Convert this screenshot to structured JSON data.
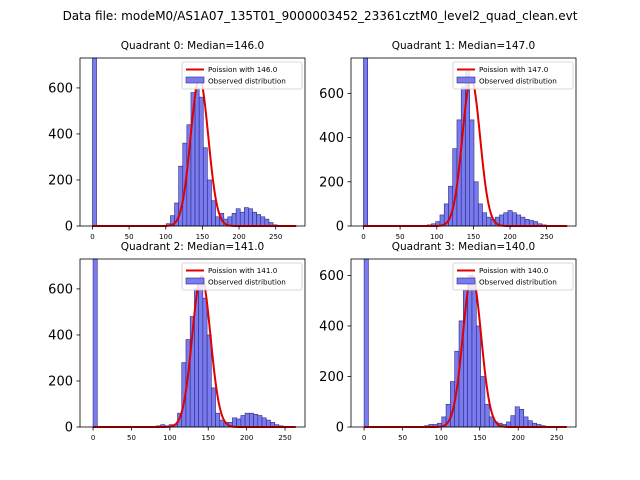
{
  "figure": {
    "suptitle": "Data file: modeM0/AS1A07_135T01_9000003452_23361cztM0_level2_quad_clean.evt"
  },
  "chart_data": [
    {
      "type": "bar",
      "title": "Quadrant 0: Median=146.0",
      "legend": {
        "placement": "top-right",
        "line_label": "Poission with 146.0",
        "bar_label": "Observed distribution"
      },
      "xlim": [
        -17,
        290
      ],
      "ylim": [
        0,
        730
      ],
      "xticks": [
        0,
        50,
        100,
        150,
        200,
        250
      ],
      "yticks": [
        0,
        200,
        400,
        600
      ],
      "bin_width": 5.6,
      "bins": [
        [
          0,
          730
        ],
        [
          5.6,
          0
        ],
        [
          11.2,
          0
        ],
        [
          16.8,
          0
        ],
        [
          22.4,
          0
        ],
        [
          28,
          0
        ],
        [
          33.6,
          0
        ],
        [
          39.2,
          0
        ],
        [
          44.8,
          0
        ],
        [
          50.4,
          0
        ],
        [
          56,
          0
        ],
        [
          61.6,
          0
        ],
        [
          67.2,
          0
        ],
        [
          72.8,
          0
        ],
        [
          78.4,
          0
        ],
        [
          84,
          0
        ],
        [
          89.6,
          0
        ],
        [
          95.2,
          0
        ],
        [
          100.8,
          10
        ],
        [
          106.4,
          45
        ],
        [
          112,
          100
        ],
        [
          117.6,
          260
        ],
        [
          123.2,
          360
        ],
        [
          128.8,
          440
        ],
        [
          134.4,
          580
        ],
        [
          140,
          600
        ],
        [
          145.6,
          560
        ],
        [
          151.2,
          340
        ],
        [
          156.8,
          200
        ],
        [
          162.4,
          110
        ],
        [
          168,
          40
        ],
        [
          173.6,
          55
        ],
        [
          179.2,
          30
        ],
        [
          184.8,
          40
        ],
        [
          190.4,
          55
        ],
        [
          196,
          75
        ],
        [
          201.6,
          60
        ],
        [
          207.2,
          80
        ],
        [
          212.8,
          75
        ],
        [
          218.4,
          60
        ],
        [
          224,
          50
        ],
        [
          229.6,
          40
        ],
        [
          235.2,
          30
        ],
        [
          240.8,
          15
        ],
        [
          246.4,
          5
        ]
      ],
      "curve_mean": 146.0,
      "curve_peak": 640
    },
    {
      "type": "bar",
      "title": "Quadrant 1: Median=147.0",
      "legend": {
        "placement": "top-right",
        "line_label": "Poission with 147.0",
        "bar_label": "Observed distribution"
      },
      "xlim": [
        -17,
        290
      ],
      "ylim": [
        0,
        760
      ],
      "xticks": [
        0,
        50,
        100,
        150,
        200,
        250
      ],
      "yticks": [
        0,
        200,
        400,
        600
      ],
      "bin_width": 5.8,
      "bins": [
        [
          0,
          760
        ],
        [
          5.8,
          0
        ],
        [
          11.6,
          0
        ],
        [
          17.4,
          0
        ],
        [
          23.2,
          0
        ],
        [
          29,
          0
        ],
        [
          34.8,
          0
        ],
        [
          40.6,
          0
        ],
        [
          46.4,
          0
        ],
        [
          52.2,
          0
        ],
        [
          58,
          0
        ],
        [
          63.8,
          0
        ],
        [
          69.6,
          0
        ],
        [
          75.4,
          0
        ],
        [
          81.2,
          0
        ],
        [
          87,
          5
        ],
        [
          92.8,
          10
        ],
        [
          98.6,
          20
        ],
        [
          104.4,
          50
        ],
        [
          110.2,
          100
        ],
        [
          116,
          180
        ],
        [
          121.8,
          350
        ],
        [
          127.6,
          480
        ],
        [
          133.4,
          630
        ],
        [
          139.2,
          700
        ],
        [
          145,
          480
        ],
        [
          150.8,
          200
        ],
        [
          156.6,
          100
        ],
        [
          162.4,
          60
        ],
        [
          168.2,
          40
        ],
        [
          174,
          30
        ],
        [
          179.8,
          40
        ],
        [
          185.6,
          50
        ],
        [
          191.4,
          60
        ],
        [
          197.2,
          70
        ],
        [
          203,
          60
        ],
        [
          208.8,
          50
        ],
        [
          214.6,
          40
        ],
        [
          220.4,
          30
        ],
        [
          226.2,
          25
        ],
        [
          232,
          20
        ],
        [
          237.8,
          10
        ],
        [
          243.6,
          5
        ]
      ],
      "curve_mean": 147.0,
      "curve_peak": 665
    },
    {
      "type": "bar",
      "title": "Quadrant 2: Median=141.0",
      "legend": {
        "placement": "top-right",
        "line_label": "Poission with 141.0",
        "bar_label": "Observed distribution"
      },
      "xlim": [
        -17,
        276
      ],
      "ylim": [
        0,
        730
      ],
      "xticks": [
        0,
        50,
        100,
        150,
        200,
        250
      ],
      "yticks": [
        0,
        200,
        400,
        600
      ],
      "bin_width": 5.5,
      "bins": [
        [
          0,
          730
        ],
        [
          5.5,
          0
        ],
        [
          11,
          0
        ],
        [
          16.5,
          0
        ],
        [
          22,
          0
        ],
        [
          27.5,
          0
        ],
        [
          33,
          0
        ],
        [
          38.5,
          0
        ],
        [
          44,
          0
        ],
        [
          49.5,
          0
        ],
        [
          55,
          0
        ],
        [
          60.5,
          0
        ],
        [
          66,
          0
        ],
        [
          71.5,
          0
        ],
        [
          77,
          0
        ],
        [
          82.5,
          5
        ],
        [
          88,
          10
        ],
        [
          93.5,
          5
        ],
        [
          99,
          10
        ],
        [
          104.5,
          10
        ],
        [
          110,
          60
        ],
        [
          115.5,
          280
        ],
        [
          121,
          380
        ],
        [
          126.5,
          480
        ],
        [
          132,
          600
        ],
        [
          137.5,
          640
        ],
        [
          143,
          560
        ],
        [
          148.5,
          400
        ],
        [
          154,
          170
        ],
        [
          159.5,
          60
        ],
        [
          165,
          30
        ],
        [
          170.5,
          20
        ],
        [
          176,
          20
        ],
        [
          181.5,
          40
        ],
        [
          187,
          35
        ],
        [
          192.5,
          50
        ],
        [
          198,
          60
        ],
        [
          203.5,
          60
        ],
        [
          209,
          55
        ],
        [
          214.5,
          50
        ],
        [
          220,
          40
        ],
        [
          225.5,
          30
        ],
        [
          231,
          20
        ],
        [
          236.5,
          10
        ],
        [
          242,
          5
        ]
      ],
      "curve_mean": 141.0,
      "curve_peak": 655
    },
    {
      "type": "bar",
      "title": "Quadrant 3: Median=140.0",
      "legend": {
        "placement": "top-right",
        "line_label": "Poission with 140.0",
        "bar_label": "Observed distribution"
      },
      "xlim": [
        -17,
        275
      ],
      "ylim": [
        0,
        665
      ],
      "xticks": [
        0,
        50,
        100,
        150,
        200,
        250
      ],
      "yticks": [
        0,
        200,
        400,
        600
      ],
      "bin_width": 5.6,
      "bins": [
        [
          0,
          665
        ],
        [
          5.6,
          0
        ],
        [
          11.2,
          0
        ],
        [
          16.8,
          0
        ],
        [
          22.4,
          0
        ],
        [
          28,
          0
        ],
        [
          33.6,
          0
        ],
        [
          39.2,
          0
        ],
        [
          44.8,
          0
        ],
        [
          50.4,
          0
        ],
        [
          56,
          0
        ],
        [
          61.6,
          0
        ],
        [
          67.2,
          0
        ],
        [
          72.8,
          0
        ],
        [
          78.4,
          5
        ],
        [
          84,
          10
        ],
        [
          89.6,
          10
        ],
        [
          95.2,
          15
        ],
        [
          100.8,
          40
        ],
        [
          106.4,
          90
        ],
        [
          112,
          180
        ],
        [
          117.6,
          300
        ],
        [
          123.2,
          420
        ],
        [
          128.8,
          540
        ],
        [
          134.4,
          600
        ],
        [
          140,
          580
        ],
        [
          145.6,
          400
        ],
        [
          151.2,
          200
        ],
        [
          156.8,
          90
        ],
        [
          162.4,
          40
        ],
        [
          168,
          20
        ],
        [
          173.6,
          15
        ],
        [
          179.2,
          10
        ],
        [
          184.8,
          20
        ],
        [
          190.4,
          45
        ],
        [
          196,
          80
        ],
        [
          201.6,
          70
        ],
        [
          207.2,
          40
        ],
        [
          212.8,
          25
        ],
        [
          218.4,
          15
        ],
        [
          224,
          10
        ],
        [
          229.6,
          5
        ]
      ],
      "curve_mean": 140.0,
      "curve_peak": 600
    }
  ]
}
